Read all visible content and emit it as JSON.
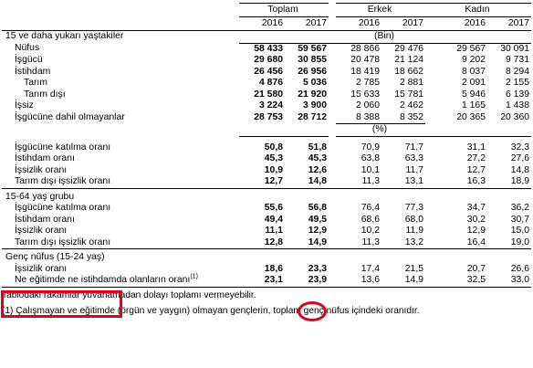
{
  "header": {
    "groups": [
      "Toplam",
      "Erkek",
      "Kadın"
    ],
    "years": [
      "2016",
      "2017",
      "2016",
      "2017",
      "2016",
      "2017"
    ]
  },
  "sections": {
    "population": {
      "title": "15 ve daha yukarı yaştakiler",
      "unit": "(Bin)",
      "rows": [
        {
          "label": "Nüfus",
          "values": [
            "58 433",
            "59 567",
            "28 866",
            "29 476",
            "29 567",
            "30 091"
          ]
        },
        {
          "label": "İşgücü",
          "values": [
            "29 680",
            "30 855",
            "20 478",
            "21 124",
            "9 202",
            "9 731"
          ]
        },
        {
          "label": "İstihdam",
          "values": [
            "26 456",
            "26 956",
            "18 419",
            "18 662",
            "8 037",
            "8 294"
          ]
        },
        {
          "label": "Tarım",
          "values": [
            "4 876",
            "5 036",
            "2 785",
            "2 881",
            "2 091",
            "2 155"
          ]
        },
        {
          "label": "Tarım dışı",
          "values": [
            "21 580",
            "21 920",
            "15 633",
            "15 781",
            "5 946",
            "6 139"
          ]
        },
        {
          "label": "İşsiz",
          "values": [
            "3 224",
            "3 900",
            "2 060",
            "2 462",
            "1 165",
            "1 438"
          ]
        },
        {
          "label": "İşgücüne dahil olmayanlar",
          "values": [
            "28 753",
            "28 712",
            "8 388",
            "8 352",
            "20 365",
            "20 360"
          ]
        }
      ]
    },
    "rates15": {
      "unit": "(%)",
      "rows": [
        {
          "label": "İşgücüne katılma oranı",
          "values": [
            "50,8",
            "51,8",
            "70,9",
            "71,7",
            "31,1",
            "32,3"
          ]
        },
        {
          "label": "İstihdam oranı",
          "values": [
            "45,3",
            "45,3",
            "63,8",
            "63,3",
            "27,2",
            "27,6"
          ]
        },
        {
          "label": "İşsizlik oranı",
          "values": [
            "10,9",
            "12,6",
            "10,1",
            "11,7",
            "12,7",
            "14,8"
          ]
        },
        {
          "label": "Tarım dışı işsizlik oranı",
          "values": [
            "12,7",
            "14,8",
            "11,3",
            "13,1",
            "16,3",
            "18,9"
          ]
        }
      ]
    },
    "age1564": {
      "title": "15-64 yaş grubu",
      "rows": [
        {
          "label": "İşgücüne katılma oranı",
          "values": [
            "55,6",
            "56,8",
            "76,4",
            "77,3",
            "34,7",
            "36,2"
          ]
        },
        {
          "label": "İstihdam oranı",
          "values": [
            "49,4",
            "49,5",
            "68,6",
            "68,0",
            "30,2",
            "30,7"
          ]
        },
        {
          "label": "İşsizlik oranı",
          "values": [
            "11,1",
            "12,9",
            "10,2",
            "11,9",
            "12,9",
            "15,0"
          ]
        },
        {
          "label": "Tarım dışı işsizlik oranı",
          "values": [
            "12,8",
            "14,9",
            "11,3",
            "13,2",
            "16,4",
            "19,0"
          ]
        }
      ]
    },
    "youth": {
      "title": "Genç nüfus (15-24 yaş)",
      "rows": [
        {
          "label": "İşsizlik oranı",
          "values": [
            "18,6",
            "23,3",
            "17,4",
            "21,5",
            "20,7",
            "26,6"
          ]
        },
        {
          "label": "Ne eğitimde ne istihdamda olanların oranı",
          "sup": "(1)",
          "values": [
            "23,1",
            "23,9",
            "13,6",
            "14,9",
            "32,5",
            "33,0"
          ]
        }
      ]
    }
  },
  "footnotes": {
    "note": "Tablodaki rakamlar yuvarlamadan dolayı toplamı vermeyebilir.",
    "note1": "(1) Çalışmayan ve eğitimde (örgün ve yaygın) olmayan gençlerin, toplam genç nüfus içindeki oranıdır."
  },
  "annotations": {
    "color": "#e3001b"
  }
}
